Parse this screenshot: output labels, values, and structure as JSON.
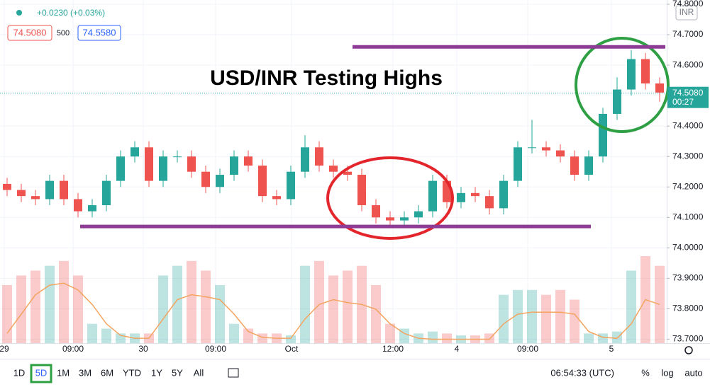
{
  "chart_data": {
    "type": "candlestick",
    "title": "USD/INR Testing Highs",
    "change": "+0.0230 (+0.03%)",
    "bid": "74.5080",
    "spread": "500",
    "ask": "74.5580",
    "currency": "INR",
    "last_price": {
      "value": 74.508,
      "label": "74.5080"
    },
    "countdown": "00:27",
    "up_color": "#26a69a",
    "down_color": "#ef5350",
    "ma_color": "#f4a460",
    "level_color": "#8e3b96",
    "xlim": [
      0,
      47
    ],
    "xticks": [
      {
        "value": 0.3,
        "label": "29"
      },
      {
        "value": 5.15,
        "label": "09:00"
      },
      {
        "value": 10.1,
        "label": "30"
      },
      {
        "value": 15.2,
        "label": "09:00"
      },
      {
        "value": 20.55,
        "label": "Oct"
      },
      {
        "value": 27.7,
        "label": "12:00"
      },
      {
        "value": 32.2,
        "label": "4"
      },
      {
        "value": 37.2,
        "label": "09:00"
      },
      {
        "value": 43.1,
        "label": "5"
      }
    ],
    "ylim": [
      73.687,
      74.814
    ],
    "yticks": [
      {
        "value": 74.8,
        "label": "74.8000"
      },
      {
        "value": 74.7,
        "label": "74.7000"
      },
      {
        "value": 74.6,
        "label": "74.6000"
      },
      {
        "value": 74.4,
        "label": "74.4000"
      },
      {
        "value": 74.3,
        "label": "74.3000"
      },
      {
        "value": 74.2,
        "label": "74.2000"
      },
      {
        "value": 74.1,
        "label": "74.1000"
      },
      {
        "value": 74.0,
        "label": "74.0000"
      },
      {
        "value": 73.9,
        "label": "73.9000"
      },
      {
        "value": 73.8,
        "label": "73.8000"
      },
      {
        "value": 73.7,
        "label": "73.7000"
      }
    ],
    "levels": [
      {
        "value": 74.66,
        "x": [
          24.85,
          46.9
        ]
      },
      {
        "value": 74.07,
        "x": [
          5.65,
          41.65
        ]
      }
    ],
    "open": [
      74.21,
      74.19,
      74.17,
      74.16,
      74.22,
      74.16,
      74.12,
      74.14,
      74.22,
      74.3,
      74.33,
      74.22,
      74.3,
      74.3,
      74.25,
      74.2,
      74.24,
      74.3,
      74.27,
      74.17,
      74.16,
      74.25,
      74.33,
      74.27,
      74.25,
      74.24,
      74.14,
      74.1,
      74.09,
      74.1,
      74.12,
      74.22,
      74.15,
      74.18,
      74.17,
      74.13,
      74.22,
      74.33,
      74.33,
      74.32,
      74.3,
      74.24,
      74.3,
      74.44,
      74.52,
      74.62,
      74.54
    ],
    "high": [
      74.23,
      74.21,
      74.19,
      74.24,
      74.24,
      74.18,
      74.16,
      74.24,
      74.32,
      74.35,
      74.35,
      74.32,
      74.32,
      74.32,
      74.27,
      74.26,
      74.32,
      74.32,
      74.29,
      74.19,
      74.27,
      74.37,
      74.35,
      74.29,
      74.27,
      74.26,
      74.16,
      74.12,
      74.12,
      74.14,
      74.24,
      74.24,
      74.2,
      74.2,
      74.19,
      74.24,
      74.35,
      74.42,
      74.35,
      74.34,
      74.32,
      74.32,
      74.46,
      74.56,
      74.65,
      74.64,
      74.56
    ],
    "low": [
      74.17,
      74.15,
      74.14,
      74.14,
      74.14,
      74.1,
      74.1,
      74.12,
      74.2,
      74.28,
      74.2,
      74.2,
      74.28,
      74.23,
      74.18,
      74.18,
      74.22,
      74.25,
      74.15,
      74.14,
      74.14,
      74.23,
      74.25,
      74.23,
      74.22,
      74.12,
      74.08,
      74.07,
      74.07,
      74.08,
      74.1,
      74.13,
      74.13,
      74.15,
      74.11,
      74.11,
      74.2,
      74.31,
      74.3,
      74.28,
      74.22,
      74.22,
      74.28,
      74.42,
      74.5,
      74.52,
      74.48
    ],
    "close": [
      74.19,
      74.17,
      74.16,
      74.22,
      74.16,
      74.12,
      74.14,
      74.22,
      74.3,
      74.33,
      74.22,
      74.3,
      74.3,
      74.25,
      74.2,
      74.24,
      74.3,
      74.27,
      74.17,
      74.16,
      74.25,
      74.33,
      74.27,
      74.25,
      74.24,
      74.14,
      74.1,
      74.09,
      74.1,
      74.12,
      74.22,
      74.15,
      74.18,
      74.17,
      74.13,
      74.22,
      74.33,
      74.33,
      74.32,
      74.3,
      74.24,
      74.3,
      74.44,
      74.52,
      74.62,
      74.54,
      74.51
    ],
    "volume": [
      60,
      70,
      75,
      80,
      85,
      70,
      20,
      15,
      10,
      10,
      10,
      70,
      80,
      85,
      75,
      60,
      20,
      15,
      10,
      10,
      8,
      80,
      85,
      70,
      75,
      80,
      60,
      20,
      15,
      10,
      12,
      10,
      8,
      8,
      10,
      50,
      55,
      55,
      50,
      55,
      45,
      10,
      10,
      12,
      75,
      90,
      80
    ],
    "volume_ma": [
      10,
      30,
      50,
      60,
      62,
      55,
      40,
      20,
      8,
      5,
      5,
      25,
      45,
      50,
      48,
      45,
      30,
      12,
      6,
      5,
      5,
      25,
      40,
      45,
      42,
      40,
      35,
      20,
      10,
      5,
      4,
      4,
      4,
      4,
      4,
      20,
      30,
      32,
      32,
      32,
      30,
      12,
      6,
      5,
      20,
      45,
      40
    ],
    "ranges": [
      "1D",
      "5D",
      "1M",
      "3M",
      "6M",
      "YTD",
      "1Y",
      "5Y",
      "All"
    ],
    "active_range": "5D",
    "clock": "06:54:33 (UTC)",
    "scale_options": [
      "%",
      "log",
      "auto"
    ]
  }
}
